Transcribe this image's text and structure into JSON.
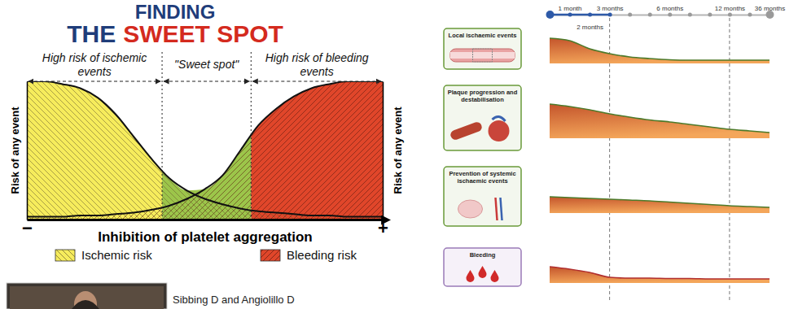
{
  "chart_data": [
    {
      "type": "area",
      "title": "FINDING THE SWEET SPOT",
      "xlabel": "Inhibition of platelet aggregation",
      "ylabel": "Risk of any event",
      "y2label": "Risk of any event",
      "x": [
        0,
        5,
        10,
        15,
        20,
        25,
        30,
        35,
        40,
        45,
        50,
        55,
        60,
        65,
        70,
        75,
        80,
        85,
        90,
        95,
        100
      ],
      "xlim": [
        0,
        100
      ],
      "xticks": [
        {
          "value": 0,
          "label": "−"
        },
        {
          "value": 100,
          "label": "+"
        }
      ],
      "ylim": [
        0,
        100
      ],
      "yticks": [],
      "tick_labels": "x",
      "series": [
        {
          "name": "Ischemic risk",
          "color": "#f6ec5c",
          "values": [
            100,
            100,
            98,
            95,
            88,
            76,
            60,
            44,
            30,
            21,
            15,
            11,
            8,
            6,
            5,
            4,
            3,
            3,
            2,
            2,
            2
          ]
        },
        {
          "name": "Bleeding risk",
          "color": "#e0462a",
          "values": [
            2,
            2,
            2,
            3,
            3,
            4,
            5,
            7,
            10,
            15,
            22,
            32,
            50,
            68,
            80,
            89,
            95,
            98,
            100,
            100,
            100
          ]
        }
      ],
      "regions": [
        {
          "label": "High risk of ischemic events",
          "from": 0,
          "to": 38,
          "color": "#f6ec5c"
        },
        {
          "label": "\"Sweet spot\"",
          "from": 38,
          "to": 63,
          "color": "#9cc54a"
        },
        {
          "label": "High risk of bleeding events",
          "from": 63,
          "to": 100,
          "color": "#e0462a"
        }
      ],
      "legend": "bottom",
      "source": "Sibbing D and Angiolillo D"
    },
    {
      "type": "area",
      "categories": [
        null,
        "1 month",
        "2 months",
        "3 months",
        null,
        null,
        "6 months",
        null,
        null,
        "12 months",
        null,
        "36 months"
      ],
      "ylim": [
        0,
        100
      ],
      "yticks": [],
      "tick_labels": "x",
      "reference_lines": [
        "3 months",
        "12 months"
      ],
      "series": [
        {
          "name": "Local ischaemic events",
          "color": "#4d7a2a",
          "values": [
            62,
            56,
            36,
            24,
            16,
            12,
            9,
            8,
            8,
            8,
            8,
            8
          ]
        },
        {
          "name": "Plaque progression and destabilisation",
          "color": "#4d7a2a",
          "values": [
            84,
            78,
            70,
            60,
            52,
            45,
            40,
            34,
            28,
            22,
            18,
            14
          ]
        },
        {
          "name": "Prevention of systemic ischaemic events",
          "color": "#4d7a2a",
          "values": [
            40,
            38,
            36,
            34,
            32,
            30,
            27,
            24,
            21,
            18,
            16,
            14
          ]
        },
        {
          "name": "Bleeding",
          "color": "#b02e2e",
          "values": [
            40,
            34,
            26,
            14,
            12,
            12,
            11,
            11,
            10,
            10,
            10,
            10
          ]
        }
      ]
    }
  ]
}
